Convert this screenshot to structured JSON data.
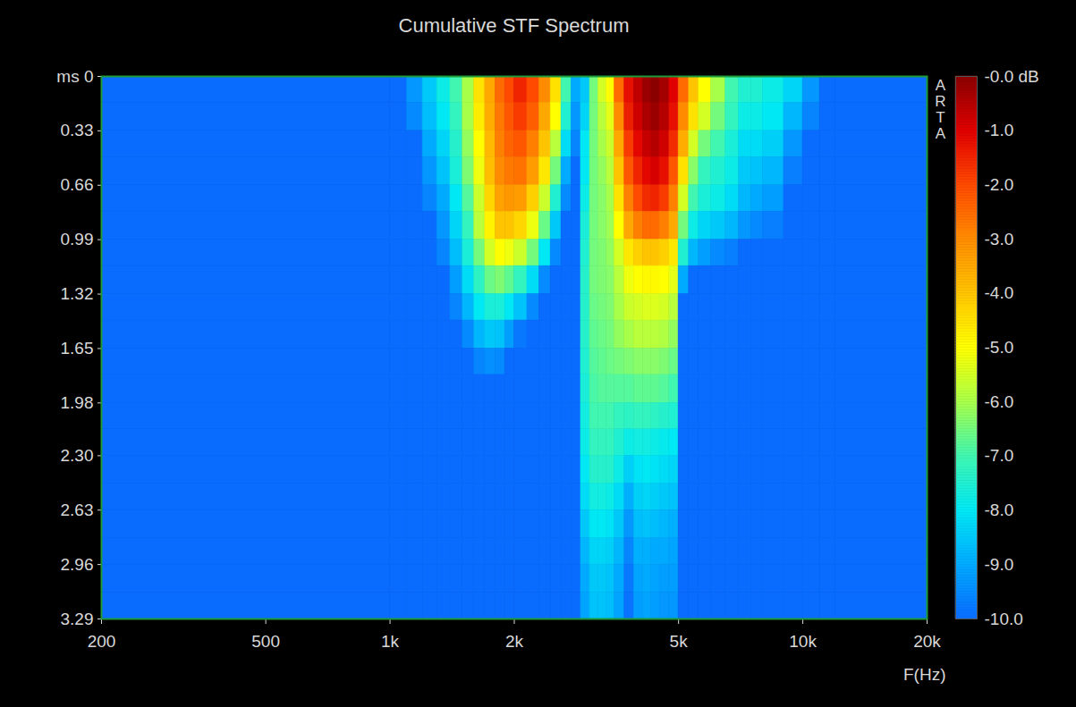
{
  "chart_data": {
    "type": "heatmap",
    "title": "Cumulative STF Spectrum",
    "x_label": "F(Hz)",
    "annotation": "ARTA",
    "log": "x",
    "grid": false,
    "xlim": [
      200,
      20000
    ],
    "xticks": [
      200,
      500,
      {
        "value": 1000,
        "label": "1k"
      },
      {
        "value": 2000,
        "label": "2k"
      },
      {
        "value": 5000,
        "label": "5k"
      },
      {
        "value": 10000,
        "label": "10k"
      },
      {
        "value": 20000,
        "label": "20k"
      }
    ],
    "ylim": [
      0,
      3.29
    ],
    "yticks": [
      {
        "value": 0,
        "label": "ms 0"
      },
      0.33,
      0.66,
      0.99,
      1.32,
      1.65,
      1.98,
      {
        "value": 2.3,
        "label": "2.30"
      },
      2.63,
      2.96,
      3.29
    ],
    "x_edges": [
      200,
      1000,
      1100,
      1200,
      1300,
      1400,
      1500,
      1600,
      1700,
      1800,
      1900,
      2000,
      2150,
      2300,
      2450,
      2600,
      2750,
      2900,
      3050,
      3200,
      3350,
      3500,
      3700,
      3900,
      4100,
      4300,
      4500,
      4750,
      5000,
      5300,
      5600,
      6000,
      6500,
      7000,
      7500,
      8000,
      9000,
      10000,
      11000,
      12000,
      20000
    ],
    "y_edges": [
      0,
      0.16,
      0.33,
      0.49,
      0.66,
      0.82,
      0.99,
      1.15,
      1.32,
      1.48,
      1.65,
      1.81,
      1.98,
      2.14,
      2.3,
      2.47,
      2.63,
      2.8,
      2.96,
      3.13,
      3.29
    ],
    "values": [
      [
        -10,
        -10,
        -9.3,
        -8.5,
        -7.8,
        -7,
        -6,
        -4.5,
        -3.5,
        -2.5,
        -2,
        -1.5,
        -2,
        -3,
        -4.5,
        -7,
        -9,
        -8.5,
        -6.5,
        -5.5,
        -5,
        -2.5,
        -1.2,
        -0.6,
        -0.2,
        0,
        -0.3,
        -1,
        -2.5,
        -4,
        -5,
        -6,
        -7,
        -7.5,
        -7.5,
        -7.8,
        -8.3,
        -9.3,
        -10,
        -10
      ],
      [
        -10,
        -10,
        -9.5,
        -8.7,
        -8,
        -7.2,
        -6,
        -4.7,
        -3.6,
        -2.7,
        -2.2,
        -1.8,
        -2.3,
        -3.5,
        -5,
        -7.5,
        -9.3,
        -8.3,
        -6.5,
        -5.8,
        -5.3,
        -3,
        -1.4,
        -0.8,
        -0.4,
        -0.2,
        -0.5,
        -1.2,
        -3,
        -4.5,
        -5.5,
        -6.5,
        -7.2,
        -7.8,
        -7.8,
        -8,
        -8.8,
        -9.6,
        -10,
        -10
      ],
      [
        -10,
        -10,
        -10,
        -9,
        -8.3,
        -7.4,
        -6.2,
        -5,
        -3.8,
        -2.8,
        -2.4,
        -2.2,
        -2.8,
        -4,
        -5.8,
        -8.2,
        -9.6,
        -8,
        -6.5,
        -6,
        -5.6,
        -3.5,
        -1.8,
        -1.1,
        -0.7,
        -0.5,
        -0.8,
        -1.6,
        -3.6,
        -5.5,
        -6.5,
        -7,
        -7.6,
        -8.2,
        -8.2,
        -8.4,
        -9.3,
        -10,
        -10,
        -10
      ],
      [
        -10,
        -10,
        -10,
        -9.3,
        -8.6,
        -7.6,
        -6.4,
        -5.2,
        -3.9,
        -3,
        -2.7,
        -2.6,
        -3.3,
        -4.6,
        -6.5,
        -9,
        -10,
        -8,
        -6.5,
        -6.2,
        -5.8,
        -4,
        -2.2,
        -1.5,
        -1.1,
        -0.9,
        -1.2,
        -2.2,
        -4.5,
        -6.3,
        -7.2,
        -7.5,
        -7.8,
        -8.5,
        -8.6,
        -8.8,
        -9.7,
        -10,
        -10,
        -10
      ],
      [
        -10,
        -10,
        -10,
        -9.6,
        -9,
        -8,
        -6.8,
        -5.6,
        -4.3,
        -3.4,
        -3.2,
        -3.3,
        -4.2,
        -5.6,
        -7.5,
        -9.5,
        -10,
        -7.8,
        -6.5,
        -6.3,
        -6,
        -4.5,
        -2.8,
        -2,
        -1.6,
        -1.5,
        -1.8,
        -2.8,
        -5.5,
        -7,
        -7.6,
        -7.8,
        -8.2,
        -8.8,
        -9,
        -9.2,
        -10,
        -10,
        -10,
        -10
      ],
      [
        -10,
        -10,
        -10,
        -10,
        -9.3,
        -8.3,
        -7.2,
        -5.8,
        -4.8,
        -4,
        -4,
        -4.3,
        -5.2,
        -6.6,
        -8.5,
        -10,
        -10,
        -7.6,
        -6.5,
        -6.3,
        -6.1,
        -5,
        -3.5,
        -2.8,
        -2.5,
        -2.5,
        -2.8,
        -3.5,
        -6.5,
        -7.8,
        -8.3,
        -8.5,
        -8.8,
        -9.3,
        -9.5,
        -9.7,
        -10,
        -10,
        -10,
        -10
      ],
      [
        -10,
        -10,
        -10,
        -10,
        -9.6,
        -8.7,
        -7.6,
        -6.5,
        -5.5,
        -5,
        -5.2,
        -5.6,
        -6.5,
        -8,
        -9.5,
        -10,
        -10,
        -7.5,
        -6.5,
        -6.4,
        -6.2,
        -5.5,
        -4.6,
        -4.2,
        -4,
        -4,
        -4.2,
        -4.6,
        -7.5,
        -8.8,
        -9.2,
        -9.5,
        -9.7,
        -10,
        -10,
        -10,
        -10,
        -10,
        -10,
        -10
      ],
      [
        -10,
        -10,
        -10,
        -10,
        -10,
        -9.2,
        -8.2,
        -7.3,
        -6.6,
        -6.4,
        -6.7,
        -7.2,
        -8.2,
        -9.5,
        -10,
        -10,
        -10,
        -7.4,
        -6.5,
        -6.4,
        -6.3,
        -5.8,
        -5.2,
        -5,
        -4.9,
        -4.9,
        -5,
        -5.3,
        -9,
        -10,
        -10,
        -10,
        -10,
        -10,
        -10,
        -10,
        -10,
        -10,
        -10,
        -10
      ],
      [
        -10,
        -10,
        -10,
        -10,
        -10,
        -9.6,
        -8.8,
        -8,
        -7.6,
        -7.6,
        -8,
        -8.6,
        -9.5,
        -10,
        -10,
        -10,
        -10,
        -7.4,
        -6.6,
        -6.5,
        -6.4,
        -6,
        -5.6,
        -5.5,
        -5.4,
        -5.4,
        -5.5,
        -5.8,
        -10,
        -10,
        -10,
        -10,
        -10,
        -10,
        -10,
        -10,
        -10,
        -10,
        -10,
        -10
      ],
      [
        -10,
        -10,
        -10,
        -10,
        -10,
        -10,
        -9.5,
        -8.8,
        -8.5,
        -8.6,
        -9.2,
        -9.8,
        -10,
        -10,
        -10,
        -10,
        -10,
        -7.4,
        -6.7,
        -6.6,
        -6.5,
        -6.2,
        -6,
        -5.8,
        -5.8,
        -5.8,
        -5.9,
        -6.2,
        -10,
        -10,
        -10,
        -10,
        -10,
        -10,
        -10,
        -10,
        -10,
        -10,
        -10,
        -10
      ],
      [
        -10,
        -10,
        -10,
        -10,
        -10,
        -10,
        -10,
        -9.6,
        -9.4,
        -9.5,
        -10,
        -10,
        -10,
        -10,
        -10,
        -10,
        -10,
        -7.5,
        -6.8,
        -6.7,
        -6.6,
        -6.5,
        -6.4,
        -6.3,
        -6.3,
        -6.3,
        -6.4,
        -6.6,
        -10,
        -10,
        -10,
        -10,
        -10,
        -10,
        -10,
        -10,
        -10,
        -10,
        -10,
        -10
      ],
      [
        -10,
        -10,
        -10,
        -10,
        -10,
        -10,
        -10,
        -10,
        -10,
        -10,
        -10,
        -10,
        -10,
        -10,
        -10,
        -10,
        -10,
        -7.6,
        -6.9,
        -6.8,
        -6.8,
        -6.8,
        -6.8,
        -6.7,
        -6.7,
        -6.7,
        -6.8,
        -7,
        -10,
        -10,
        -10,
        -10,
        -10,
        -10,
        -10,
        -10,
        -10,
        -10,
        -10,
        -10
      ],
      [
        -10,
        -10,
        -10,
        -10,
        -10,
        -10,
        -10,
        -10,
        -10,
        -10,
        -10,
        -10,
        -10,
        -10,
        -10,
        -10,
        -10,
        -7.7,
        -7,
        -7,
        -7,
        -7.2,
        -7.3,
        -7.2,
        -7.2,
        -7.3,
        -7.4,
        -7.5,
        -10,
        -10,
        -10,
        -10,
        -10,
        -10,
        -10,
        -10,
        -10,
        -10,
        -10,
        -10
      ],
      [
        -10,
        -10,
        -10,
        -10,
        -10,
        -10,
        -10,
        -10,
        -10,
        -10,
        -10,
        -10,
        -10,
        -10,
        -10,
        -10,
        -10,
        -7.8,
        -7.2,
        -7.2,
        -7.2,
        -7.5,
        -7.8,
        -7.7,
        -7.7,
        -7.8,
        -7.9,
        -8,
        -10,
        -10,
        -10,
        -10,
        -10,
        -10,
        -10,
        -10,
        -10,
        -10,
        -10,
        -10
      ],
      [
        -10,
        -10,
        -10,
        -10,
        -10,
        -10,
        -10,
        -10,
        -10,
        -10,
        -10,
        -10,
        -10,
        -10,
        -10,
        -10,
        -10,
        -8,
        -7.4,
        -7.4,
        -7.4,
        -7.8,
        -8.4,
        -8.1,
        -8,
        -8.1,
        -8.2,
        -8.3,
        -10,
        -10,
        -10,
        -10,
        -10,
        -10,
        -10,
        -10,
        -10,
        -10,
        -10,
        -10
      ],
      [
        -10,
        -10,
        -10,
        -10,
        -10,
        -10,
        -10,
        -10,
        -10,
        -10,
        -10,
        -10,
        -10,
        -10,
        -10,
        -10,
        -10,
        -8.2,
        -7.7,
        -7.7,
        -7.8,
        -8.2,
        -8.9,
        -8.4,
        -8.3,
        -8.4,
        -8.5,
        -8.6,
        -10,
        -10,
        -10,
        -10,
        -10,
        -10,
        -10,
        -10,
        -10,
        -10,
        -10,
        -10
      ],
      [
        -10,
        -10,
        -10,
        -10,
        -10,
        -10,
        -10,
        -10,
        -10,
        -10,
        -10,
        -10,
        -10,
        -10,
        -10,
        -10,
        -10,
        -8.5,
        -8,
        -8,
        -8.1,
        -8.5,
        -9.3,
        -8.7,
        -8.6,
        -8.7,
        -8.8,
        -8.9,
        -10,
        -10,
        -10,
        -10,
        -10,
        -10,
        -10,
        -10,
        -10,
        -10,
        -10,
        -10
      ],
      [
        -10,
        -10,
        -10,
        -10,
        -10,
        -10,
        -10,
        -10,
        -10,
        -10,
        -10,
        -10,
        -10,
        -10,
        -10,
        -10,
        -10,
        -8.8,
        -8.3,
        -8.3,
        -8.4,
        -8.8,
        -9.6,
        -8.9,
        -8.9,
        -9,
        -9,
        -9.1,
        -10,
        -10,
        -10,
        -10,
        -10,
        -10,
        -10,
        -10,
        -10,
        -10,
        -10,
        -10
      ],
      [
        -10,
        -10,
        -10,
        -10,
        -10,
        -10,
        -10,
        -10,
        -10,
        -10,
        -10,
        -10,
        -10,
        -10,
        -10,
        -10,
        -10,
        -9,
        -8.5,
        -8.5,
        -8.6,
        -9,
        -9.8,
        -9.1,
        -9,
        -9.1,
        -9.2,
        -9.2,
        -10,
        -10,
        -10,
        -10,
        -10,
        -10,
        -10,
        -10,
        -10,
        -10,
        -10,
        -10
      ],
      [
        -10,
        -10,
        -10,
        -10,
        -10,
        -10,
        -10,
        -10,
        -10,
        -10,
        -10,
        -10,
        -10,
        -10,
        -10,
        -10,
        -10,
        -9.1,
        -8.6,
        -8.6,
        -8.7,
        -9.1,
        -9.9,
        -9.2,
        -9.1,
        -9.2,
        -9.3,
        -9.3,
        -10,
        -10,
        -10,
        -10,
        -10,
        -10,
        -10,
        -10,
        -10,
        -10,
        -10,
        -10
      ]
    ],
    "colorbar_range": [
      -10,
      0
    ],
    "colorbar_ticks": [
      {
        "value": 0,
        "label": "-0.0 dB"
      },
      {
        "value": -1,
        "label": "-1.0"
      },
      {
        "value": -2,
        "label": "-2.0"
      },
      {
        "value": -3,
        "label": "-3.0"
      },
      {
        "value": -4,
        "label": "-4.0"
      },
      {
        "value": -5,
        "label": "-5.0"
      },
      {
        "value": -6,
        "label": "-6.0"
      },
      {
        "value": -7,
        "label": "-7.0"
      },
      {
        "value": -8,
        "label": "-8.0"
      },
      {
        "value": -9,
        "label": "-9.0"
      },
      {
        "value": -10,
        "label": "-10.0"
      }
    ]
  }
}
